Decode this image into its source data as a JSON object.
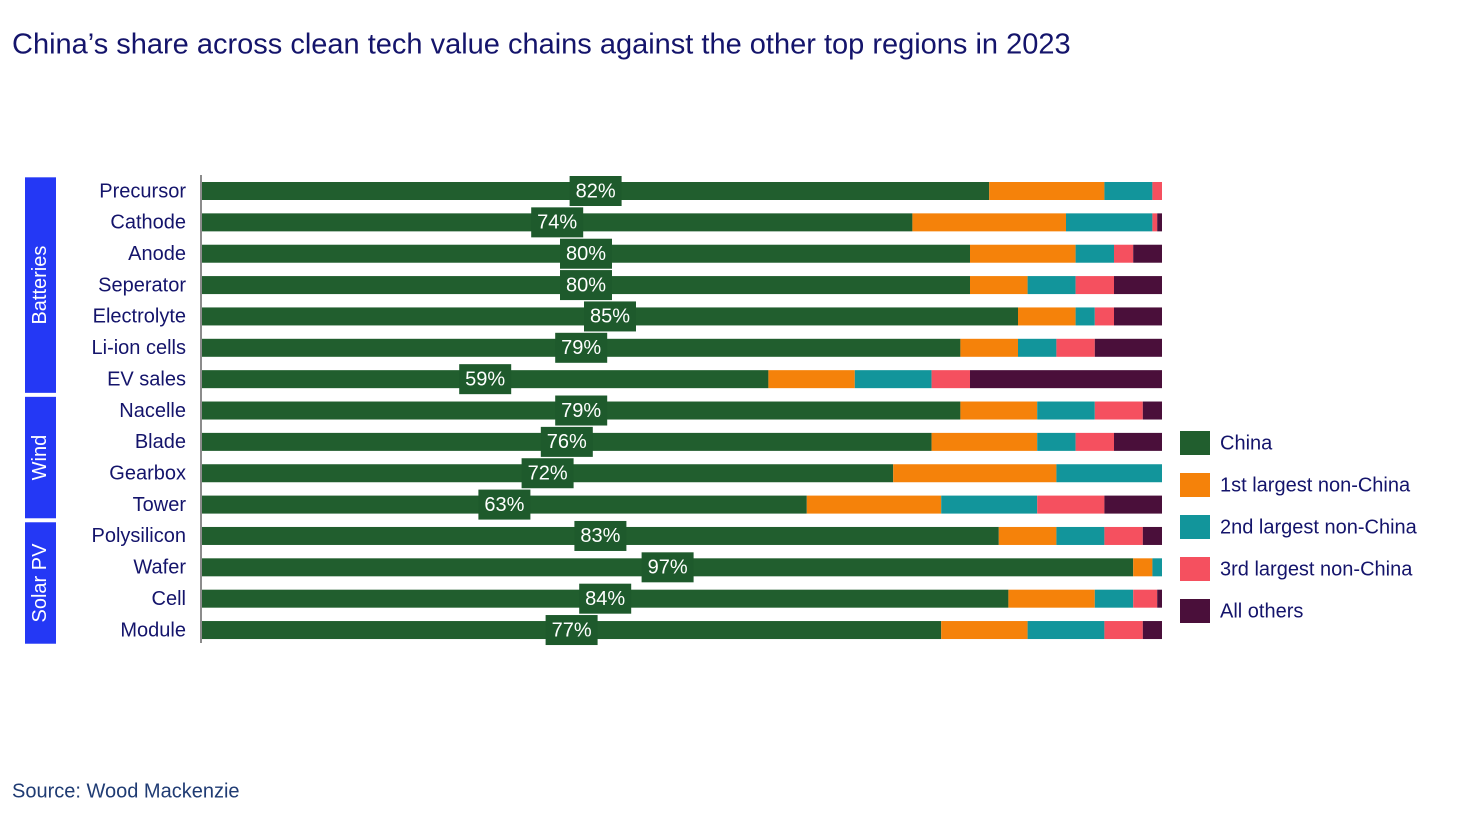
{
  "chart_data": {
    "type": "stacked-bar-horizontal",
    "title": "China’s share across clean tech value chains against the other top regions in 2023",
    "source": "Source: Wood Mackenzie",
    "groups": [
      {
        "name": "Batteries",
        "categories": [
          "Precursor",
          "Cathode",
          "Anode",
          "Seperator",
          "Electrolyte",
          "Li-ion cells",
          "EV sales"
        ]
      },
      {
        "name": "Wind",
        "categories": [
          "Nacelle",
          "Blade",
          "Gearbox",
          "Tower"
        ]
      },
      {
        "name": "Solar PV",
        "categories": [
          "Polysilicon",
          "Wafer",
          "Cell",
          "Module"
        ]
      }
    ],
    "xlim": [
      0,
      100
    ],
    "legend": "right",
    "series": [
      {
        "name": "China",
        "color": "#215e2e",
        "values": [
          82,
          74,
          80,
          80,
          85,
          79,
          59,
          79,
          76,
          72,
          63,
          83,
          97,
          84,
          77
        ],
        "value_labels": [
          "82%",
          "74%",
          "80%",
          "80%",
          "85%",
          "79%",
          "59%",
          "79%",
          "76%",
          "72%",
          "63%",
          "83%",
          "97%",
          "84%",
          "77%"
        ]
      },
      {
        "name": "1st largest non-China",
        "color": "#f5820a",
        "values": [
          12,
          16,
          11,
          6,
          6,
          6,
          9,
          8,
          11,
          17,
          14,
          6,
          2,
          9,
          9
        ]
      },
      {
        "name": "2nd largest non-China",
        "color": "#12959b",
        "values": [
          5,
          9,
          4,
          5,
          2,
          4,
          8,
          6,
          4,
          11,
          10,
          5,
          1,
          4,
          8
        ]
      },
      {
        "name": "3rd largest non-China",
        "color": "#f5505f",
        "values": [
          1,
          0.5,
          2,
          4,
          2,
          4,
          4,
          5,
          4,
          0,
          7,
          4,
          0,
          2.5,
          4
        ]
      },
      {
        "name": "All others",
        "color": "#4a0f3a",
        "values": [
          0,
          0.5,
          3,
          5,
          5,
          7,
          20,
          2,
          5,
          0,
          6,
          2,
          0,
          0.5,
          2
        ]
      }
    ]
  }
}
